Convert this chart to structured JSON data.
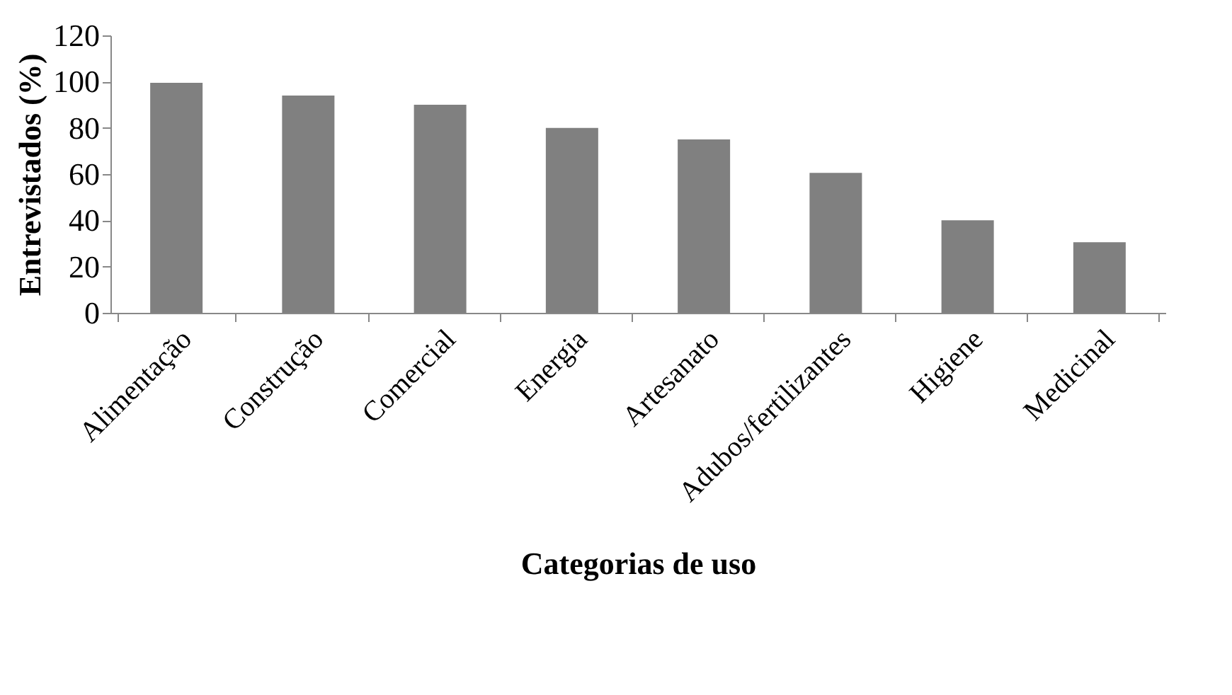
{
  "chart_data": {
    "type": "bar",
    "xlabel": "Categorias de uso",
    "ylabel": "Entrevistados (%)",
    "categories": [
      "Alimentação",
      "Construção",
      "Comercial",
      "Energia",
      "Artesanato",
      "Adubos/fertilizantes",
      "Higiene",
      "Medicinal"
    ],
    "values": [
      99.5,
      94,
      90,
      80,
      75,
      60.5,
      40,
      30.5
    ],
    "color": "#808080",
    "ylim": [
      0,
      120
    ],
    "yticks": [
      0,
      20,
      40,
      60,
      80,
      100,
      120
    ],
    "grid": false
  }
}
